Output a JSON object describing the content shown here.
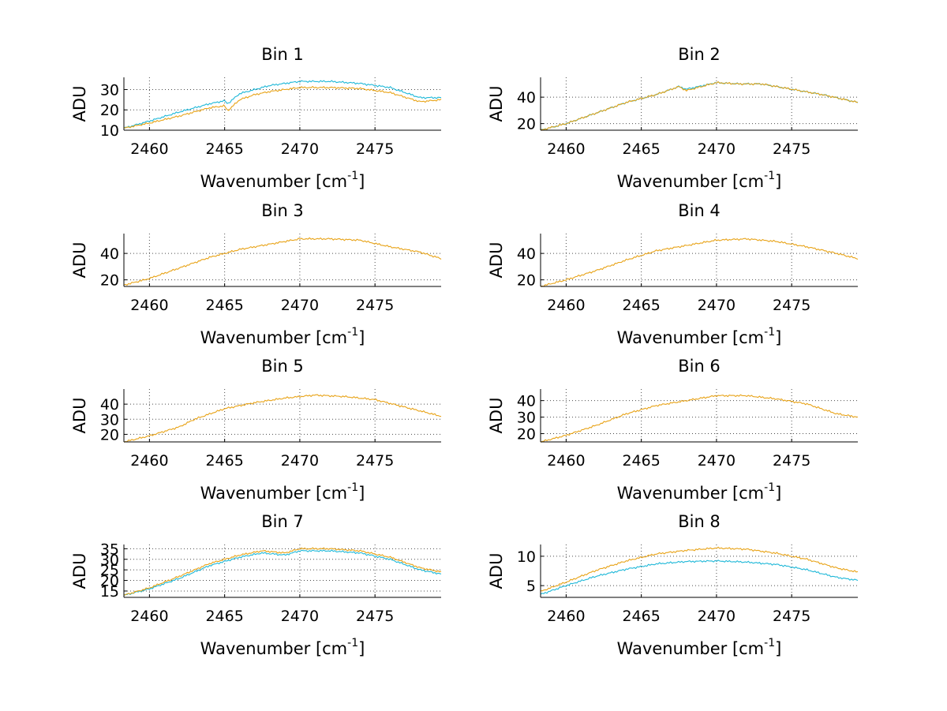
{
  "figure": {
    "background": "#ffffff",
    "line_colors": {
      "orange": "#e8a317",
      "cyan": "#1fb8d8"
    }
  },
  "chart_data": [
    {
      "type": "line",
      "title": "Bin 1",
      "xlabel": "Wavenumber [cm",
      "xlabel_sup": "-1",
      "xlabel_end": "]",
      "ylabel": "ADU",
      "xlim": [
        2458.3,
        2479.4
      ],
      "ylim": [
        10,
        36
      ],
      "xticks": [
        2460,
        2465,
        2470,
        2475
      ],
      "yticks": [
        10,
        20,
        30
      ],
      "grid": true,
      "x": [
        2458.3,
        2460,
        2462,
        2464,
        2465,
        2465.2,
        2466,
        2467,
        2468,
        2470,
        2472,
        2474,
        2476,
        2478,
        2479.4
      ],
      "series": [
        {
          "color": "cyan",
          "values": [
            11,
            14.5,
            19,
            23,
            24.5,
            23,
            28,
            30,
            32,
            34,
            34,
            33,
            31,
            26,
            26
          ]
        },
        {
          "color": "orange",
          "values": [
            11,
            13.5,
            17,
            21,
            22,
            19.5,
            25,
            27.5,
            29,
            31,
            31,
            30.5,
            28.5,
            24,
            25
          ]
        }
      ]
    },
    {
      "type": "line",
      "title": "Bin 2",
      "xlabel": "Wavenumber [cm",
      "xlabel_sup": "-1",
      "xlabel_end": "]",
      "ylabel": "ADU",
      "xlim": [
        2458.3,
        2479.4
      ],
      "ylim": [
        15,
        55
      ],
      "xticks": [
        2460,
        2465,
        2470,
        2475
      ],
      "yticks": [
        20,
        40
      ],
      "grid": true,
      "x": [
        2458.3,
        2460,
        2462,
        2464,
        2466,
        2467.5,
        2468,
        2470,
        2471.5,
        2473,
        2475,
        2477,
        2479.4
      ],
      "series": [
        {
          "color": "cyan",
          "values": [
            15,
            20,
            28,
            36,
            42,
            48,
            46,
            51,
            50,
            50,
            46,
            42,
            36
          ]
        },
        {
          "color": "orange",
          "values": [
            15,
            20,
            28,
            36,
            42,
            48,
            45,
            51,
            50,
            50,
            46,
            42,
            36
          ]
        }
      ]
    },
    {
      "type": "line",
      "title": "Bin 3",
      "xlabel": "Wavenumber [cm",
      "xlabel_sup": "-1",
      "xlabel_end": "]",
      "ylabel": "ADU",
      "xlim": [
        2458.3,
        2479.4
      ],
      "ylim": [
        15,
        55
      ],
      "xticks": [
        2460,
        2465,
        2470,
        2475
      ],
      "yticks": [
        20,
        40
      ],
      "grid": true,
      "x": [
        2458.3,
        2460,
        2462,
        2464,
        2466,
        2468,
        2470,
        2472,
        2474,
        2476,
        2478,
        2479.4
      ],
      "series": [
        {
          "color": "orange",
          "values": [
            16,
            21,
            29,
            37,
            43,
            47,
            51,
            51,
            50,
            45,
            41,
            36
          ]
        }
      ]
    },
    {
      "type": "line",
      "title": "Bin 4",
      "xlabel": "Wavenumber [cm",
      "xlabel_sup": "-1",
      "xlabel_end": "]",
      "ylabel": "ADU",
      "xlim": [
        2458.3,
        2479.4
      ],
      "ylim": [
        15,
        55
      ],
      "xticks": [
        2460,
        2465,
        2470,
        2475
      ],
      "yticks": [
        20,
        40
      ],
      "grid": true,
      "x": [
        2458.3,
        2460,
        2462,
        2464,
        2466,
        2468,
        2470,
        2472,
        2474,
        2476,
        2478,
        2479.4
      ],
      "series": [
        {
          "color": "orange",
          "values": [
            15,
            20,
            27,
            35,
            42,
            46,
            50,
            51,
            49,
            45,
            40,
            36
          ]
        }
      ]
    },
    {
      "type": "line",
      "title": "Bin 5",
      "xlabel": "Wavenumber [cm",
      "xlabel_sup": "-1",
      "xlabel_end": "]",
      "ylabel": "ADU",
      "xlim": [
        2458.3,
        2479.4
      ],
      "ylim": [
        15,
        50
      ],
      "xticks": [
        2460,
        2465,
        2470,
        2475
      ],
      "yticks": [
        20,
        30,
        40
      ],
      "grid": true,
      "x": [
        2458.3,
        2460,
        2462,
        2463,
        2465,
        2467,
        2469,
        2471,
        2473,
        2475,
        2477,
        2479.4
      ],
      "series": [
        {
          "color": "orange",
          "values": [
            15,
            19,
            25,
            30,
            37,
            41,
            44,
            46,
            45,
            43,
            38,
            32
          ]
        }
      ]
    },
    {
      "type": "line",
      "title": "Bin 6",
      "xlabel": "Wavenumber [cm",
      "xlabel_sup": "-1",
      "xlabel_end": "]",
      "ylabel": "ADU",
      "xlim": [
        2458.3,
        2479.4
      ],
      "ylim": [
        15,
        47
      ],
      "xticks": [
        2460,
        2465,
        2470,
        2475
      ],
      "yticks": [
        20,
        30,
        40
      ],
      "grid": true,
      "x": [
        2458.3,
        2460,
        2462,
        2464,
        2466,
        2468,
        2470,
        2472,
        2474,
        2476,
        2478,
        2479.4
      ],
      "series": [
        {
          "color": "orange",
          "values": [
            15,
            19,
            25,
            32,
            37,
            40,
            43,
            43,
            41,
            38,
            32,
            30
          ]
        }
      ]
    },
    {
      "type": "line",
      "title": "Bin 7",
      "xlabel": "Wavenumber [cm",
      "xlabel_sup": "-1",
      "xlabel_end": "]",
      "ylabel": "ADU",
      "xlim": [
        2458.3,
        2479.4
      ],
      "ylim": [
        12,
        37
      ],
      "xticks": [
        2460,
        2465,
        2470,
        2475
      ],
      "yticks": [
        15,
        20,
        25,
        30,
        35
      ],
      "grid": true,
      "x": [
        2458.3,
        2460,
        2462,
        2464,
        2466,
        2467.5,
        2469,
        2470,
        2472,
        2474,
        2476,
        2478,
        2479.4
      ],
      "series": [
        {
          "color": "cyan",
          "values": [
            13,
            16,
            21,
            27,
            31,
            33,
            32,
            34,
            34,
            33,
            30,
            25,
            23
          ]
        },
        {
          "color": "orange",
          "values": [
            13,
            16.5,
            22,
            28,
            32,
            34,
            33,
            35,
            35,
            34,
            31,
            26,
            24
          ]
        }
      ]
    },
    {
      "type": "line",
      "title": "Bin 8",
      "xlabel": "Wavenumber [cm",
      "xlabel_sup": "-1",
      "xlabel_end": "]",
      "ylabel": "ADU",
      "xlim": [
        2458.3,
        2479.4
      ],
      "ylim": [
        3,
        12
      ],
      "xticks": [
        2460,
        2465,
        2470,
        2475
      ],
      "yticks": [
        5,
        10
      ],
      "grid": true,
      "x": [
        2458.3,
        2460,
        2462,
        2464,
        2466,
        2468,
        2470,
        2472,
        2474,
        2476,
        2478,
        2479.4
      ],
      "series": [
        {
          "color": "cyan",
          "values": [
            3.5,
            5,
            6.6,
            7.8,
            8.7,
            9.1,
            9.2,
            9,
            8.6,
            7.7,
            6.4,
            5.9
          ]
        },
        {
          "color": "orange",
          "values": [
            4,
            5.6,
            7.6,
            9.2,
            10.4,
            11,
            11.4,
            11.2,
            10.5,
            9.5,
            8,
            7.3
          ]
        }
      ]
    }
  ]
}
